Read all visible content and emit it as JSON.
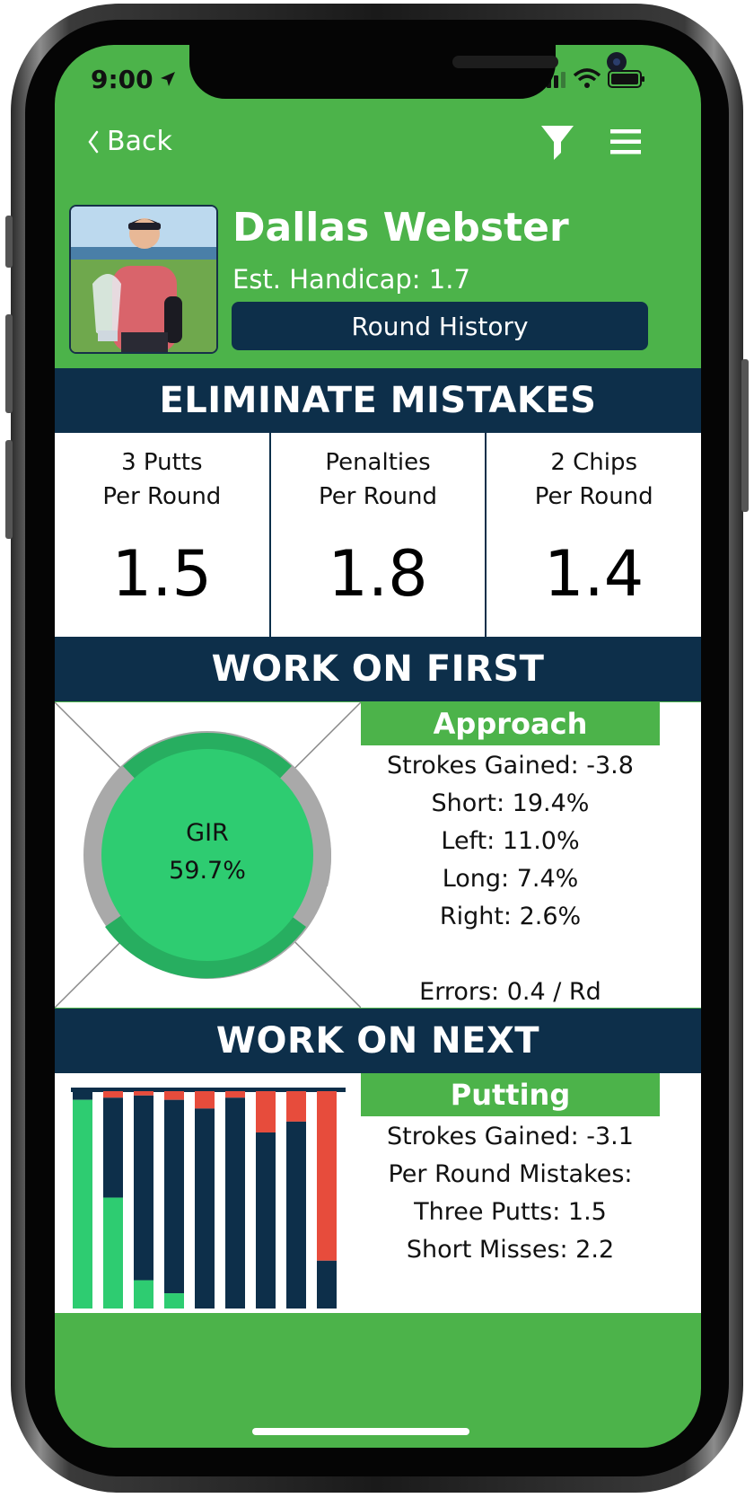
{
  "status_bar": {
    "time": "9:00"
  },
  "nav": {
    "back_label": "Back"
  },
  "player": {
    "name": "Dallas Webster",
    "handicap": "Est. Handicap: 1.7",
    "history_button": "Round History"
  },
  "eliminate_mistakes": {
    "title": "ELIMINATE MISTAKES",
    "stats": [
      {
        "label_line1": "3 Putts",
        "label_line2": "Per Round",
        "value": "1.5"
      },
      {
        "label_line1": "Penalties",
        "label_line2": "Per Round",
        "value": "1.8"
      },
      {
        "label_line1": "2 Chips",
        "label_line2": "Per Round",
        "value": "1.4"
      }
    ]
  },
  "work_on_first": {
    "title": "WORK ON FIRST",
    "category": "Approach",
    "gir_label": "GIR",
    "gir_value": "59.7%",
    "lines": [
      "Strokes Gained: -3.8",
      "Short: 19.4%",
      "Left: 11.0%",
      "Long: 7.4%",
      "Right: 2.6%"
    ],
    "errors": "Errors: 0.4 / Rd"
  },
  "work_on_next": {
    "title": "WORK ON NEXT",
    "category": "Putting",
    "lines": [
      "Strokes Gained: -3.1",
      "Per Round Mistakes:",
      "Three Putts: 1.5",
      "Short Misses: 2.2"
    ]
  },
  "colors": {
    "brand_green": "#4cb34a",
    "navy": "#0d2f4a",
    "gir_green": "#2ecc71",
    "dark_green": "#27ae60",
    "red": "#e74c3c",
    "gray": "#a9a9a9"
  },
  "putting_bars": [
    {
      "green": 0.96,
      "navy": 0.04,
      "red": 0.0
    },
    {
      "green": 0.51,
      "navy": 0.46,
      "red": 0.03
    },
    {
      "green": 0.13,
      "navy": 0.85,
      "red": 0.02
    },
    {
      "green": 0.07,
      "navy": 0.89,
      "red": 0.04
    },
    {
      "green": 0.0,
      "navy": 0.92,
      "red": 0.08
    },
    {
      "green": 0.0,
      "navy": 0.97,
      "red": 0.03
    },
    {
      "green": 0.0,
      "navy": 0.81,
      "red": 0.19
    },
    {
      "green": 0.0,
      "navy": 0.86,
      "red": 0.14
    },
    {
      "green": 0.0,
      "navy": 0.22,
      "red": 0.78
    }
  ]
}
